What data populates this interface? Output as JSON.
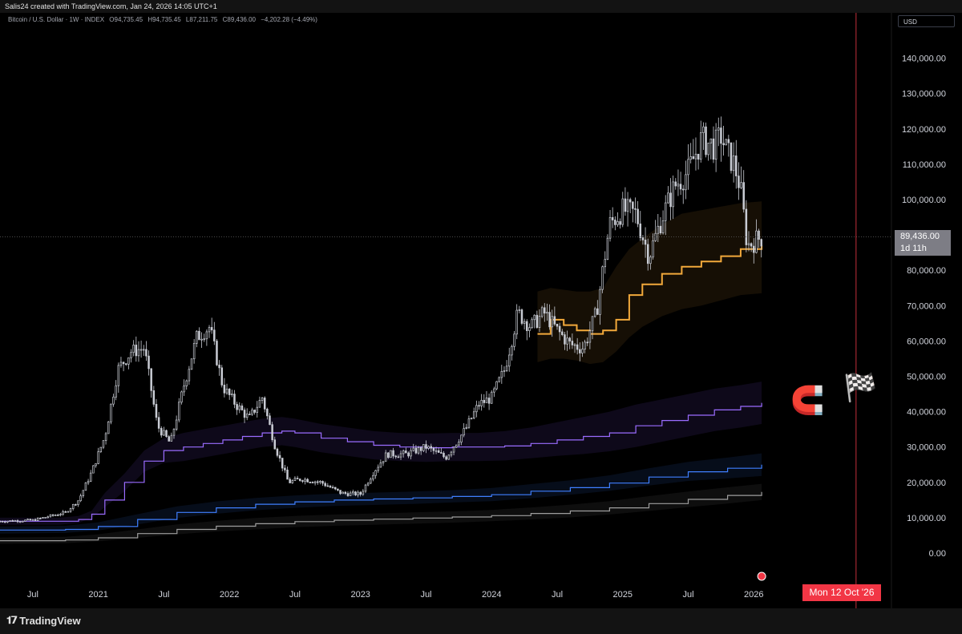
{
  "header": {
    "created_by": "Salis24 created with TradingView.com, Jan 24, 2026 14:05 UTC+1"
  },
  "legend": {
    "symbol": "Bitcoin / U.S. Dollar · 1W · INDEX",
    "open": "O94,735.45",
    "high": "H94,735.45",
    "low": "L87,211.75",
    "close": "C89,436.00",
    "change": "−4,202.28 (−4.49%)"
  },
  "currency": "USD",
  "current_price": {
    "price": "89,436.00",
    "countdown": "1d 11h"
  },
  "marker_date": "Mon 12 Oct '26",
  "brand": "TradingView",
  "icons": {
    "magnet": "magnet-icon",
    "flag": "chequered-flag-icon",
    "flag_small": "us-flag-icon"
  },
  "colors": {
    "candles": "#c9ccd4",
    "orange_band": "#f2a93b",
    "purple_band": "#9a6cff",
    "blue_band": "#3f7fff",
    "grey_band": "#9e9e9e",
    "marker": "#f23645"
  },
  "chart_data": {
    "type": "line",
    "title": "Bitcoin / U.S. Dollar · 1W · INDEX",
    "ylim": [
      0,
      145000
    ],
    "yticks": [
      {
        "value": 0,
        "label": "0.00"
      },
      {
        "value": 10000,
        "label": "10,000.00"
      },
      {
        "value": 20000,
        "label": "20,000.00"
      },
      {
        "value": 30000,
        "label": "30,000.00"
      },
      {
        "value": 40000,
        "label": "40,000.00"
      },
      {
        "value": 50000,
        "label": "50,000.00"
      },
      {
        "value": 60000,
        "label": "60,000.00"
      },
      {
        "value": 70000,
        "label": "70,000.00"
      },
      {
        "value": 80000,
        "label": "80,000.00"
      },
      {
        "value": 100000,
        "label": "100,000.00"
      },
      {
        "value": 110000,
        "label": "110,000.00"
      },
      {
        "value": 120000,
        "label": "120,000.00"
      },
      {
        "value": 130000,
        "label": "130,000.00"
      },
      {
        "value": 140000,
        "label": "140,000.00"
      }
    ],
    "xticks": [
      {
        "t": 2020.5,
        "label": "Jul"
      },
      {
        "t": 2021.0,
        "label": "2021"
      },
      {
        "t": 2021.5,
        "label": "Jul"
      },
      {
        "t": 2022.0,
        "label": "2022"
      },
      {
        "t": 2022.5,
        "label": "Jul"
      },
      {
        "t": 2023.0,
        "label": "2023"
      },
      {
        "t": 2023.5,
        "label": "Jul"
      },
      {
        "t": 2024.0,
        "label": "2024"
      },
      {
        "t": 2024.5,
        "label": "Jul"
      },
      {
        "t": 2025.0,
        "label": "2025"
      },
      {
        "t": 2025.5,
        "label": "Jul"
      },
      {
        "t": 2026.0,
        "label": "2026"
      }
    ],
    "xrange": [
      2020.25,
      2027.05
    ],
    "marker_t": 2026.78,
    "last_price": 89436,
    "price_series": {
      "name": "Bitcoin / U.S. Dollar",
      "t": [
        2020.25,
        2020.5,
        2020.75,
        2020.85,
        2020.95,
        2021.05,
        2021.15,
        2021.25,
        2021.35,
        2021.45,
        2021.55,
        2021.65,
        2021.75,
        2021.85,
        2021.95,
        2022.05,
        2022.15,
        2022.25,
        2022.35,
        2022.45,
        2022.55,
        2022.7,
        2022.85,
        2022.9,
        2023.0,
        2023.1,
        2023.2,
        2023.35,
        2023.5,
        2023.65,
        2023.8,
        2023.9,
        2024.0,
        2024.1,
        2024.2,
        2024.3,
        2024.4,
        2024.5,
        2024.6,
        2024.7,
        2024.8,
        2024.9,
        2025.0,
        2025.1,
        2025.2,
        2025.3,
        2025.4,
        2025.5,
        2025.6,
        2025.7,
        2025.75,
        2025.8,
        2025.85,
        2025.9,
        2025.95,
        2026.06
      ],
      "v": [
        9000,
        9300,
        11500,
        15000,
        23000,
        33000,
        52000,
        57000,
        58000,
        36000,
        31000,
        47000,
        61000,
        64000,
        47000,
        42000,
        38000,
        44000,
        30000,
        20000,
        21000,
        20000,
        17000,
        16800,
        16700,
        23000,
        28000,
        28000,
        30000,
        27000,
        35000,
        42000,
        44000,
        52000,
        68000,
        64000,
        68000,
        63000,
        59000,
        58000,
        68000,
        93000,
        97000,
        96000,
        84000,
        95000,
        104000,
        108000,
        117000,
        115000,
        118000,
        113000,
        110000,
        103000,
        87000,
        89436
      ]
    },
    "bands": [
      {
        "name": "orange",
        "t": [
          2024.35,
          2024.45,
          2024.55,
          2024.65,
          2024.75,
          2024.85,
          2024.95,
          2025.05,
          2025.15,
          2025.3,
          2025.45,
          2025.6,
          2025.75,
          2025.9,
          2026.06
        ],
        "mid": [
          62000,
          66000,
          64500,
          63000,
          62000,
          63000,
          66000,
          73000,
          76000,
          79000,
          81000,
          82500,
          84000,
          86000,
          87000
        ],
        "upper": [
          74000,
          75000,
          74500,
          74000,
          74000,
          75000,
          81000,
          86000,
          89000,
          93000,
          96000,
          97000,
          98000,
          99000,
          99500
        ],
        "lower": [
          54000,
          55000,
          55000,
          54500,
          53500,
          54000,
          57000,
          61000,
          64000,
          67000,
          69000,
          70000,
          71500,
          73000,
          73500
        ]
      },
      {
        "name": "purple",
        "t": [
          2020.25,
          2020.7,
          2020.85,
          2020.95,
          2021.05,
          2021.2,
          2021.35,
          2021.5,
          2021.65,
          2021.8,
          2021.95,
          2022.1,
          2022.25,
          2022.4,
          2022.5,
          2022.7,
          2022.9,
          2023.1,
          2023.3,
          2023.5,
          2023.7,
          2023.9,
          2024.1,
          2024.3,
          2024.5,
          2024.7,
          2024.9,
          2025.1,
          2025.3,
          2025.5,
          2025.7,
          2025.9,
          2026.06
        ],
        "mid": [
          9000,
          9000,
          9500,
          11000,
          15000,
          20000,
          26000,
          29000,
          30000,
          31000,
          32000,
          33000,
          34000,
          34500,
          34000,
          32500,
          31500,
          30500,
          30000,
          29800,
          30000,
          30000,
          30300,
          31000,
          32000,
          33000,
          34000,
          36000,
          37500,
          39000,
          40500,
          41500,
          42500
        ],
        "upper": [
          10000,
          10000,
          10500,
          12000,
          17000,
          22500,
          29000,
          32500,
          34000,
          35000,
          36000,
          37000,
          38000,
          38500,
          38000,
          36500,
          35500,
          34500,
          34000,
          33800,
          34000,
          34000,
          34500,
          35500,
          37000,
          38500,
          40000,
          42000,
          43500,
          45000,
          46500,
          47500,
          48500
        ],
        "lower": [
          8000,
          8000,
          8500,
          10000,
          13000,
          17500,
          23000,
          25500,
          26000,
          27000,
          28000,
          29000,
          30000,
          30500,
          30000,
          28500,
          27500,
          26500,
          26000,
          25800,
          26000,
          26000,
          26200,
          26800,
          27500,
          28000,
          28800,
          30000,
          31500,
          33000,
          34500,
          35500,
          36500
        ]
      },
      {
        "name": "blue",
        "t": [
          2020.25,
          2020.75,
          2021.0,
          2021.3,
          2021.6,
          2021.9,
          2022.2,
          2022.5,
          2022.8,
          2023.1,
          2023.4,
          2023.7,
          2024.0,
          2024.3,
          2024.6,
          2024.9,
          2025.2,
          2025.5,
          2025.8,
          2026.06
        ],
        "mid": [
          6500,
          6700,
          7500,
          9500,
          11500,
          12800,
          13800,
          14500,
          15000,
          15300,
          15600,
          16000,
          16500,
          17500,
          18500,
          19800,
          21500,
          23000,
          24000,
          25000
        ],
        "upper": [
          7500,
          7700,
          8700,
          11000,
          13200,
          14600,
          15600,
          16300,
          16800,
          17100,
          17400,
          17800,
          18400,
          19500,
          20600,
          22000,
          24000,
          25800,
          27000,
          28200
        ],
        "lower": [
          5500,
          5700,
          6400,
          8100,
          9900,
          11100,
          12100,
          12800,
          13300,
          13600,
          13900,
          14300,
          14700,
          15500,
          16500,
          17600,
          19100,
          20400,
          21100,
          21800
        ]
      },
      {
        "name": "grey",
        "t": [
          2020.25,
          2020.75,
          2021.0,
          2021.3,
          2021.6,
          2021.9,
          2022.2,
          2022.5,
          2022.8,
          2023.1,
          2023.4,
          2023.7,
          2024.0,
          2024.3,
          2024.6,
          2024.9,
          2025.2,
          2025.5,
          2025.8,
          2026.06
        ],
        "mid": [
          3500,
          3700,
          4300,
          5500,
          6700,
          7600,
          8300,
          8900,
          9300,
          9600,
          9900,
          10200,
          10600,
          11200,
          11900,
          12800,
          14000,
          15200,
          16300,
          17300
        ],
        "upper": [
          4400,
          4600,
          5300,
          6700,
          8100,
          9100,
          9900,
          10500,
          10900,
          11200,
          11500,
          11800,
          12200,
          12900,
          13700,
          14700,
          16100,
          17400,
          18600,
          19600
        ],
        "lower": [
          2600,
          2800,
          3300,
          4300,
          5300,
          6100,
          6700,
          7300,
          7700,
          8000,
          8300,
          8600,
          9000,
          9500,
          10100,
          10900,
          11900,
          13000,
          14000,
          15000
        ]
      }
    ]
  }
}
